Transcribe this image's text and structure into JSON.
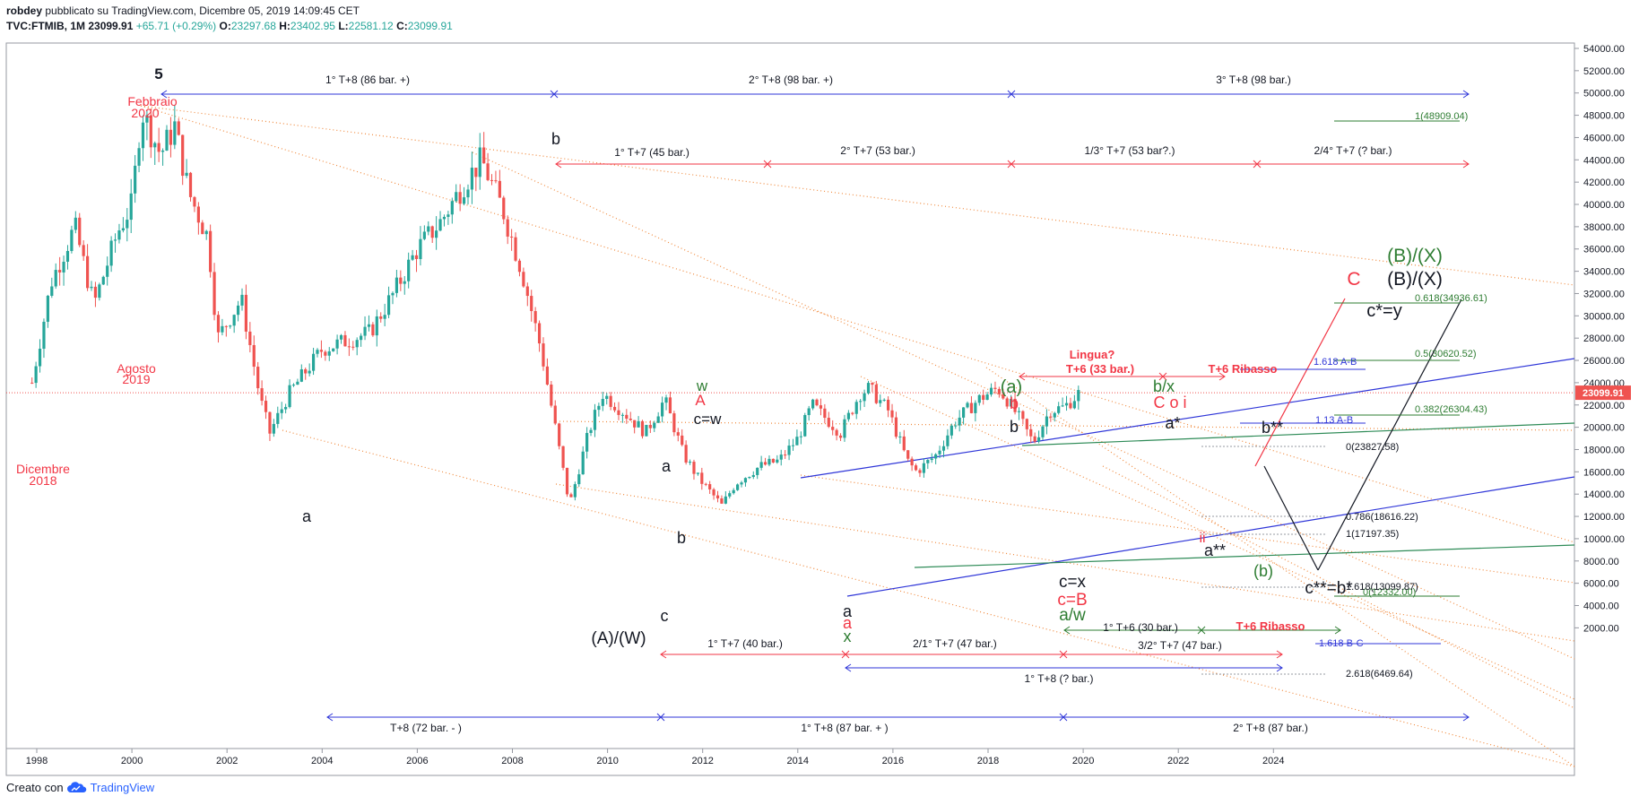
{
  "header": {
    "line1_user": "robdey",
    "line1_rest": "pubblicato su TradingView.com, Dicembre 05, 2019 14:09:45 CET",
    "symbol": "TVC:FTMIB, 1M",
    "last": "23099.91",
    "change": "+65.71 (+0.29%)",
    "o_label": "O:",
    "o": "23297.68",
    "h_label": "H:",
    "h": "23402.95",
    "l_label": "L:",
    "l": "22581.12",
    "c_label": "C:",
    "c": "23099.91"
  },
  "footer": {
    "created_with": "Creato con",
    "brand": "TradingView"
  },
  "colors": {
    "up": "#26a69a",
    "down": "#ef5350",
    "red_label": "#f23645",
    "green_label": "#2e7d32",
    "blue_line": "#2f36d8",
    "orange_dot": "#f08a3e",
    "price_tag": "#ef5350"
  },
  "chart_data": {
    "type": "candlestick",
    "instrument": "TVC:FTMIB",
    "interval": "1M",
    "y_range": [
      0,
      55000
    ],
    "x_range": [
      1997.5,
      2025.5
    ],
    "y_ticks": [
      "54000.00",
      "52000.00",
      "50000.00",
      "48000.00",
      "46000.00",
      "44000.00",
      "42000.00",
      "40000.00",
      "38000.00",
      "36000.00",
      "34000.00",
      "32000.00",
      "30000.00",
      "28000.00",
      "26000.00",
      "24000.00",
      "22000.00",
      "20000.00",
      "18000.00",
      "16000.00",
      "14000.00",
      "12000.00",
      "10000.00",
      "8000.00",
      "6000.00",
      "4000.00",
      "2000.00"
    ],
    "x_ticks": [
      "1998",
      "2000",
      "2002",
      "2004",
      "2006",
      "2008",
      "2010",
      "2012",
      "2014",
      "2016",
      "2018",
      "2020",
      "2022",
      "2024"
    ],
    "last_price_tag": "23099.91",
    "price_anchors": [
      [
        1997.9,
        24000
      ],
      [
        1998.3,
        33000
      ],
      [
        1998.8,
        38000
      ],
      [
        1999.2,
        31000
      ],
      [
        1999.7,
        37500
      ],
      [
        2000.0,
        40000
      ],
      [
        2000.2,
        48500
      ],
      [
        2000.6,
        44500
      ],
      [
        2000.9,
        47000
      ],
      [
        2001.2,
        41000
      ],
      [
        2001.6,
        37000
      ],
      [
        2001.8,
        28000
      ],
      [
        2002.3,
        31500
      ],
      [
        2002.7,
        22500
      ],
      [
        2002.9,
        19500
      ],
      [
        2003.3,
        23000
      ],
      [
        2004.0,
        27000
      ],
      [
        2005.0,
        28500
      ],
      [
        2005.5,
        32000
      ],
      [
        2006.0,
        36000
      ],
      [
        2006.5,
        38500
      ],
      [
        2007.0,
        42000
      ],
      [
        2007.35,
        44000
      ],
      [
        2007.8,
        39500
      ],
      [
        2008.2,
        34000
      ],
      [
        2008.6,
        27000
      ],
      [
        2008.9,
        20000
      ],
      [
        2009.2,
        13000
      ],
      [
        2009.6,
        19500
      ],
      [
        2009.9,
        23000
      ],
      [
        2010.3,
        21500
      ],
      [
        2010.8,
        19500
      ],
      [
        2011.2,
        22500
      ],
      [
        2011.6,
        17500
      ],
      [
        2011.9,
        15500
      ],
      [
        2012.4,
        13000
      ],
      [
        2012.7,
        15000
      ],
      [
        2013.2,
        16500
      ],
      [
        2013.6,
        17000
      ],
      [
        2014.0,
        19000
      ],
      [
        2014.3,
        22000
      ],
      [
        2014.9,
        19500
      ],
      [
        2015.3,
        23000
      ],
      [
        2015.5,
        23500
      ],
      [
        2015.9,
        21500
      ],
      [
        2016.3,
        17000
      ],
      [
        2016.5,
        16000
      ],
      [
        2016.9,
        17500
      ],
      [
        2017.3,
        20500
      ],
      [
        2017.8,
        22500
      ],
      [
        2018.2,
        23500
      ],
      [
        2018.4,
        22500
      ],
      [
        2018.7,
        20500
      ],
      [
        2018.95,
        18600
      ],
      [
        2019.3,
        21500
      ],
      [
        2019.6,
        21800
      ],
      [
        2019.92,
        23100
      ]
    ],
    "annotations": {
      "wave_labels": [
        {
          "text": "5",
          "color": "#131722"
        },
        {
          "text": "Febbraio",
          "color": "#f23645"
        },
        {
          "text": "2020",
          "color": "#f23645"
        },
        {
          "text": "Agosto",
          "color": "#f23645"
        },
        {
          "text": "2019",
          "color": "#f23645"
        },
        {
          "text": "Dicembre",
          "color": "#f23645"
        },
        {
          "text": "2018",
          "color": "#f23645"
        },
        {
          "text": "a",
          "color": "#131722"
        },
        {
          "text": "b",
          "color": "#131722"
        },
        {
          "text": "w",
          "color": "#2e7d32"
        },
        {
          "text": "A",
          "color": "#f23645"
        },
        {
          "text": "c=w",
          "color": "#131722"
        },
        {
          "text": "a",
          "color": "#131722"
        },
        {
          "text": "b",
          "color": "#131722"
        },
        {
          "text": "c",
          "color": "#131722"
        },
        {
          "text": "(A)/(W)",
          "color": "#131722"
        },
        {
          "text": "a",
          "color": "#131722"
        },
        {
          "text": "a",
          "color": "#f23645"
        },
        {
          "text": "x",
          "color": "#2e7d32"
        },
        {
          "text": "(a)",
          "color": "#2e7d32"
        },
        {
          "text": "b",
          "color": "#f23645"
        },
        {
          "text": "b",
          "color": "#131722"
        },
        {
          "text": "c=x",
          "color": "#131722"
        },
        {
          "text": "c=B",
          "color": "#f23645"
        },
        {
          "text": "a/w",
          "color": "#2e7d32"
        },
        {
          "text": "b/x",
          "color": "#2e7d32"
        },
        {
          "text": "C o i",
          "color": "#f23645"
        },
        {
          "text": "a*",
          "color": "#131722"
        },
        {
          "text": "b**",
          "color": "#131722"
        },
        {
          "text": "ii",
          "color": "#f23645"
        },
        {
          "text": "a**",
          "color": "#131722"
        },
        {
          "text": "(b)",
          "color": "#2e7d32"
        },
        {
          "text": "c**=b*",
          "color": "#131722"
        },
        {
          "text": "(B)/(X)",
          "color": "#2e7d32"
        },
        {
          "text": "C",
          "color": "#f23645"
        },
        {
          "text": "(B)/(X)",
          "color": "#131722"
        },
        {
          "text": "c*=y",
          "color": "#131722"
        }
      ],
      "cycle_labels": [
        {
          "text": "1° T+8 (86 bar. +)",
          "color": "#131722"
        },
        {
          "text": "2° T+8 (98 bar. +)",
          "color": "#131722"
        },
        {
          "text": "3° T+8 (98 bar.)",
          "color": "#131722"
        },
        {
          "text": "1° T+7 (45 bar.)",
          "color": "#131722"
        },
        {
          "text": "2° T+7 (53 bar.)",
          "color": "#131722"
        },
        {
          "text": "1/3° T+7 (53 bar?.)",
          "color": "#131722"
        },
        {
          "text": "2/4° T+7 (? bar.)",
          "color": "#131722"
        },
        {
          "text": "Lingua?",
          "color": "#f23645"
        },
        {
          "text": "T+6 (33 bar.)",
          "color": "#f23645"
        },
        {
          "text": "T+6 Ribasso",
          "color": "#f23645"
        },
        {
          "text": "T+6 Ribasso",
          "color": "#f23645"
        },
        {
          "text": "1° T+6 (30 bar.)",
          "color": "#131722"
        },
        {
          "text": "1° T+7 (40 bar.)",
          "color": "#131722"
        },
        {
          "text": "2/1° T+7 (47 bar.)",
          "color": "#131722"
        },
        {
          "text": "3/2° T+7 (47 bar.)",
          "color": "#131722"
        },
        {
          "text": "1° T+8 (? bar.)",
          "color": "#131722"
        },
        {
          "text": "T+8 (72 bar. - )",
          "color": "#131722"
        },
        {
          "text": "1° T+8 (87 bar. + )",
          "color": "#131722"
        },
        {
          "text": "2° T+8 (87 bar.)",
          "color": "#131722"
        }
      ],
      "fib_levels": [
        {
          "text": "1(48909.04)",
          "color": "#2e7d32"
        },
        {
          "text": "0.618(34936.61)",
          "color": "#2e7d32"
        },
        {
          "text": "0.5(30620.52)",
          "color": "#2e7d32"
        },
        {
          "text": "0.382(26304.43)",
          "color": "#2e7d32"
        },
        {
          "text": "0(12332.00)",
          "color": "#2e7d32"
        },
        {
          "text": "1.618 A-B",
          "color": "#2f36d8"
        },
        {
          "text": "1.13 A-B",
          "color": "#2f36d8"
        },
        {
          "text": "1.618 B-C",
          "color": "#2f36d8"
        },
        {
          "text": "0(23827.58)",
          "color": "#131722"
        },
        {
          "text": "0.786(18616.22)",
          "color": "#131722"
        },
        {
          "text": "1(17197.35)",
          "color": "#131722"
        },
        {
          "text": "1.618(13099.87)",
          "color": "#131722"
        },
        {
          "text": "2.618(6469.64)",
          "color": "#131722"
        }
      ]
    }
  }
}
